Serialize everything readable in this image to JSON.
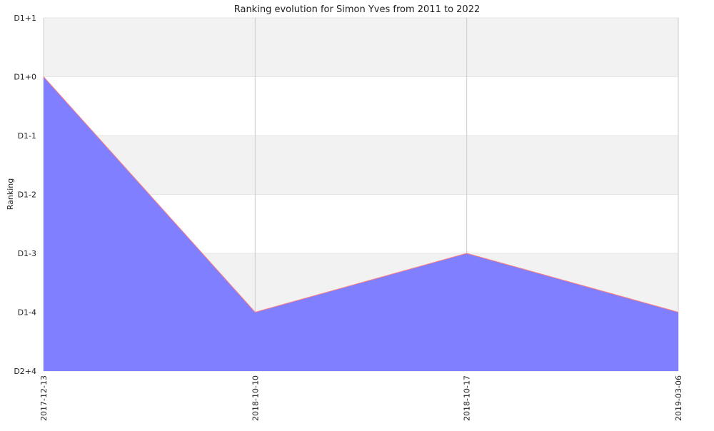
{
  "chart_data": {
    "type": "area",
    "title": "Ranking evolution for Simon Yves from 2011 to 2022",
    "xlabel": "",
    "ylabel": "Ranking",
    "x": [
      "2017-12-13",
      "2018-10-10",
      "2018-10-17",
      "2019-03-06"
    ],
    "y_tick_labels": [
      "D1+1",
      "D1+0",
      "D1-1",
      "D1-2",
      "D1-3",
      "D1-4",
      "D2+4"
    ],
    "series": [
      {
        "name": "",
        "values": [
          "D1+0",
          "D1-4",
          "D1-3",
          "D1-4"
        ]
      }
    ],
    "grid": true,
    "legend": "none",
    "colors": {
      "area_fill": "#7f7fff",
      "line": "#ff7f7f",
      "band_alt": "#f2f2f2",
      "grid": "#cccccc"
    }
  }
}
